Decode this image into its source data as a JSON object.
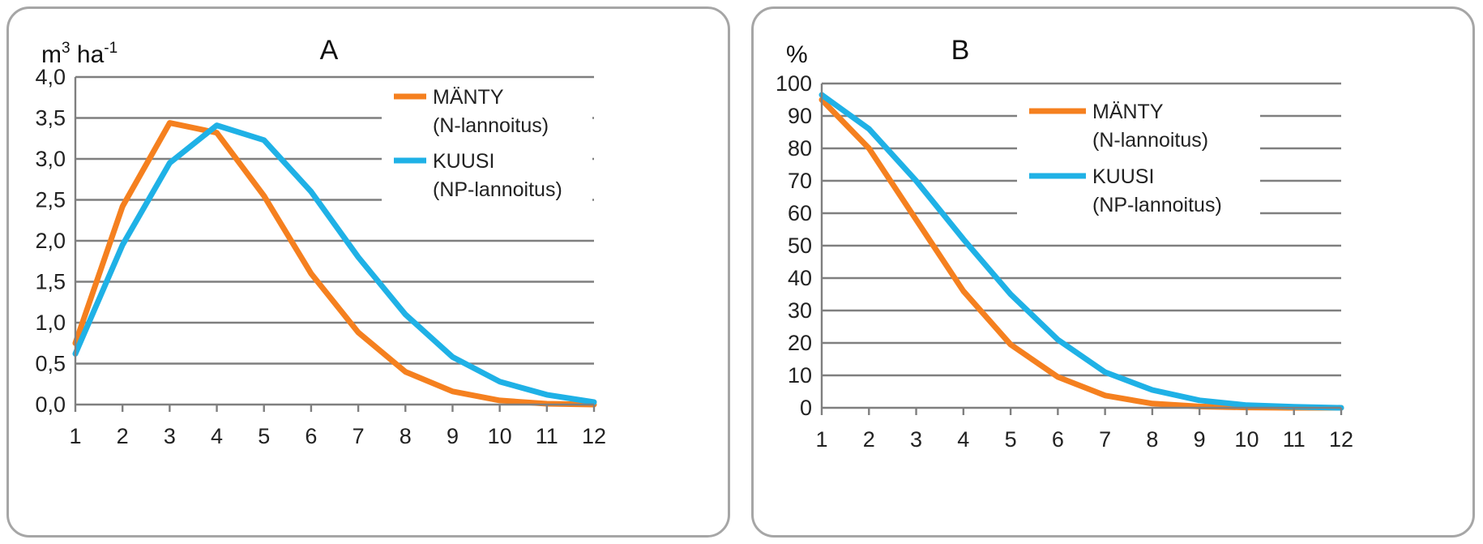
{
  "colors": {
    "manty": "#f5801f",
    "kuusi": "#1fb1e6",
    "grid": "#7f7f7f"
  },
  "chart_data": [
    {
      "type": "line",
      "title": "A",
      "ylabel": "m³ ha⁻¹",
      "ylabel_base": "m",
      "ylabel_sup1": "3",
      "ylabel_mid": " ha",
      "ylabel_sup2": "-1",
      "x": [
        1,
        2,
        3,
        4,
        5,
        6,
        7,
        8,
        9,
        10,
        11,
        12
      ],
      "xticks": [
        "1",
        "2",
        "3",
        "4",
        "5",
        "6",
        "7",
        "8",
        "9",
        "10",
        "11",
        "12"
      ],
      "ylim": [
        0,
        4
      ],
      "yticks": [
        0,
        0.5,
        1,
        1.5,
        2,
        2.5,
        3,
        3.5,
        4
      ],
      "yticklabels": [
        "0,0",
        "0,5",
        "1,0",
        "1,5",
        "2,0",
        "2,5",
        "3,0",
        "3,5",
        "4,0"
      ],
      "grid": true,
      "legend_position": "top-right",
      "series": [
        {
          "name": "MÄNTY",
          "name_line2": "(N-lannoitus)",
          "color": "#f5801f",
          "values": [
            0.75,
            2.42,
            3.44,
            3.32,
            2.55,
            1.6,
            0.88,
            0.4,
            0.16,
            0.05,
            0.01,
            0.0
          ]
        },
        {
          "name": "KUUSI",
          "name_line2": "(NP-lannoitus)",
          "color": "#1fb1e6",
          "values": [
            0.62,
            1.95,
            2.95,
            3.41,
            3.23,
            2.6,
            1.8,
            1.1,
            0.58,
            0.28,
            0.12,
            0.03
          ]
        }
      ]
    },
    {
      "type": "line",
      "title": "B",
      "ylabel": "%",
      "x": [
        1,
        2,
        3,
        4,
        5,
        6,
        7,
        8,
        9,
        10,
        11,
        12
      ],
      "xticks": [
        "1",
        "2",
        "3",
        "4",
        "5",
        "6",
        "7",
        "8",
        "9",
        "10",
        "11",
        "12"
      ],
      "ylim": [
        0,
        100
      ],
      "yticks": [
        0,
        10,
        20,
        30,
        40,
        50,
        60,
        70,
        80,
        90,
        100
      ],
      "yticklabels": [
        "0",
        "10",
        "20",
        "30",
        "40",
        "50",
        "60",
        "70",
        "80",
        "90",
        "100"
      ],
      "grid": true,
      "legend_position": "top-right",
      "series": [
        {
          "name": "MÄNTY",
          "name_line2": "(N-lannoitus)",
          "color": "#f5801f",
          "values": [
            95,
            80,
            58,
            36,
            19.5,
            9.5,
            3.8,
            1.3,
            0.4,
            0.1,
            0.0,
            0.0
          ]
        },
        {
          "name": "KUUSI",
          "name_line2": "(NP-lannoitus)",
          "color": "#1fb1e6",
          "values": [
            96.5,
            86,
            70,
            52,
            35,
            21,
            11,
            5.5,
            2.3,
            0.8,
            0.3,
            0.0
          ]
        }
      ]
    }
  ]
}
